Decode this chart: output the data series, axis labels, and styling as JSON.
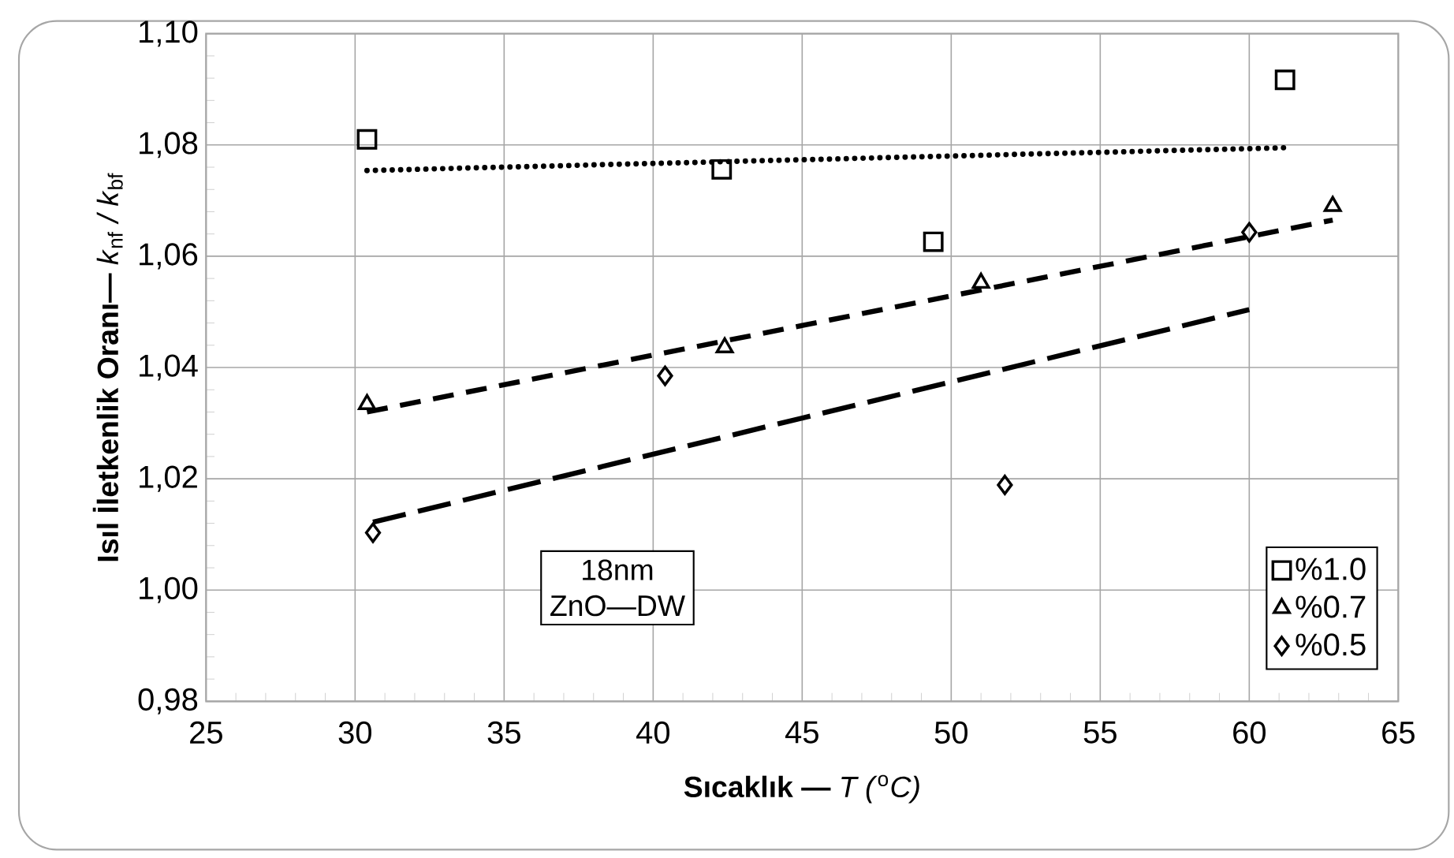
{
  "chart_data": {
    "type": "scatter",
    "xlabel": "**Sıcaklık —** *T (*$^{o}$*C)*",
    "ylabel": "**Isıl İletkenlik Oranı—** *k*$_{nf}$ */ k*$_{bf}$",
    "xlim": [
      25,
      65
    ],
    "xticks": [
      25,
      30,
      35,
      40,
      45,
      50,
      55,
      60,
      65
    ],
    "ylim": [
      0.98,
      1.1
    ],
    "yticks": [
      {
        "value": 0.98,
        "label": "0,98"
      },
      {
        "value": 1.0,
        "label": "1,00"
      },
      {
        "value": 1.02,
        "label": "1,02"
      },
      {
        "value": 1.04,
        "label": "1,04"
      },
      {
        "value": 1.06,
        "label": "1,06"
      },
      {
        "value": 1.08,
        "label": "1,08"
      },
      {
        "value": 1.1,
        "label": "1,10"
      }
    ],
    "grid": true,
    "legend": "bottom right",
    "annotations": [
      "18nm",
      "ZnO—DW"
    ],
    "series": [
      {
        "name": "%1.0",
        "marker": "square",
        "color": "#000000",
        "x": [
          30.4,
          42.3,
          49.4,
          61.2
        ],
        "values": [
          1.081,
          1.0756,
          1.0626,
          1.0917
        ]
      },
      {
        "name": "%0.7",
        "marker": "triangle",
        "color": "#000000",
        "x": [
          30.4,
          42.4,
          51.0,
          62.8
        ],
        "values": [
          1.0334,
          1.0436,
          1.0552,
          1.069
        ]
      },
      {
        "name": "%0.5",
        "marker": "diamond",
        "color": "#000000",
        "x": [
          30.6,
          40.4,
          51.8,
          60.0
        ],
        "values": [
          1.0103,
          1.0385,
          1.0189,
          1.0643
        ]
      },
      {
        "type": "line",
        "line_style": "dotted",
        "color": "#000000",
        "x": [
          30.4,
          61.2
        ],
        "values": [
          1.0754,
          1.0795
        ]
      },
      {
        "type": "line",
        "line_style": "dashed",
        "color": "#000000",
        "x": [
          30.4,
          62.8
        ],
        "values": [
          1.032,
          1.0665
        ]
      },
      {
        "type": "line",
        "line_style": "dashed",
        "color": "#000000",
        "x": [
          30.6,
          60.0
        ],
        "values": [
          1.0122,
          1.0504
        ]
      }
    ]
  }
}
